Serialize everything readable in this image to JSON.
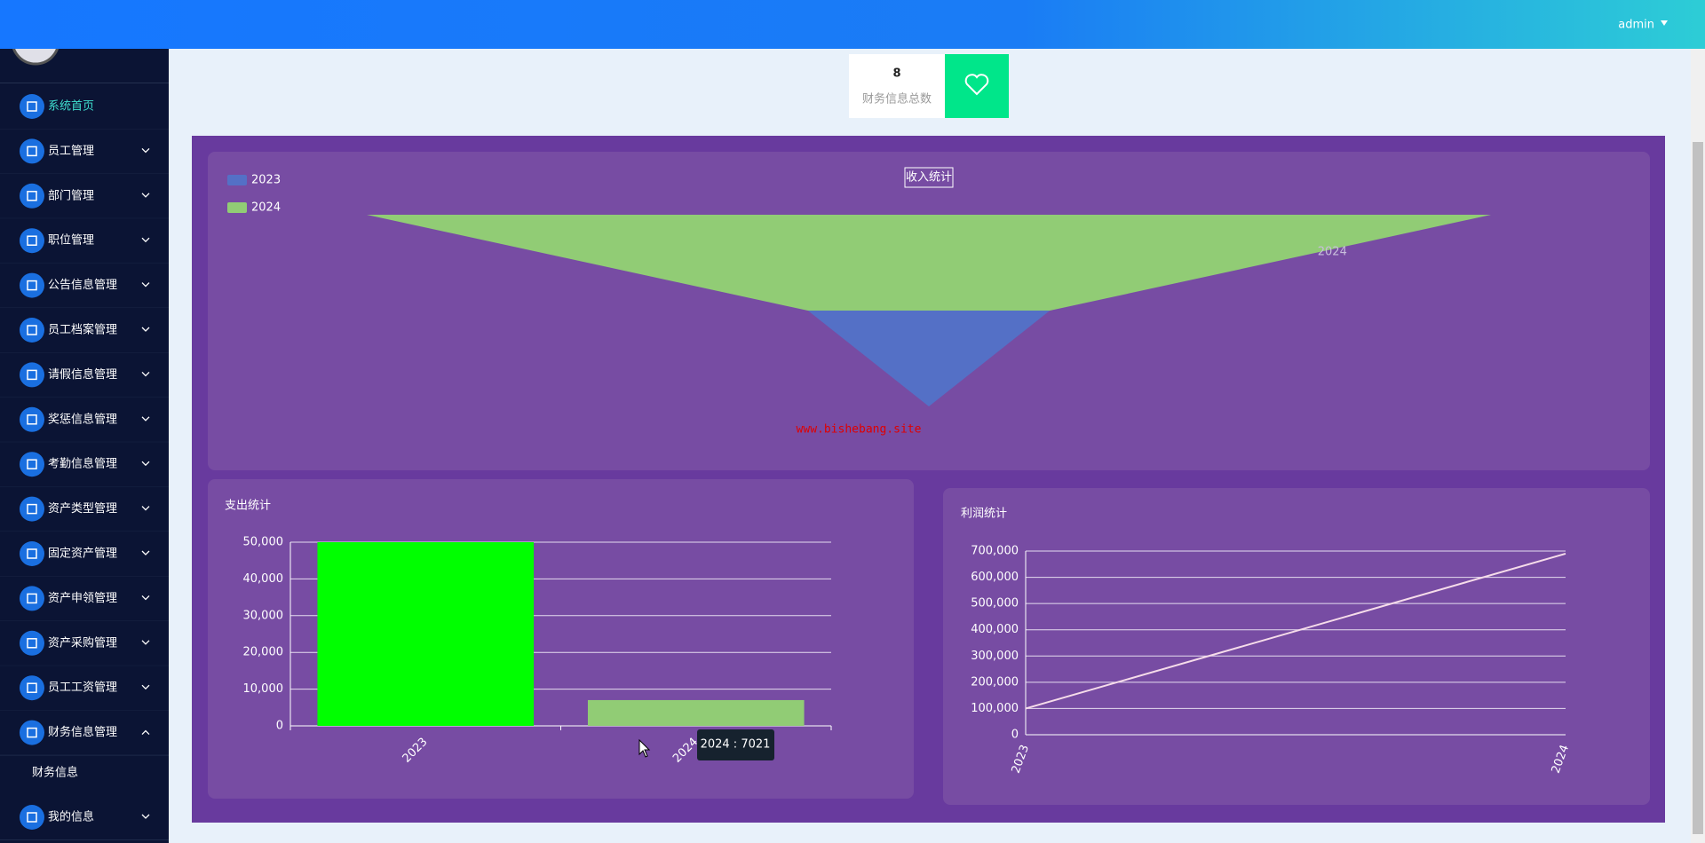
{
  "header": {
    "user": "admin"
  },
  "sidebar": {
    "items": [
      "系统首页",
      "员工管理",
      "部门管理",
      "职位管理",
      "公告信息管理",
      "员工档案管理",
      "请假信息管理",
      "奖惩信息管理",
      "考勤信息管理",
      "资产类型管理",
      "固定资产管理",
      "资产申领管理",
      "资产采购管理",
      "员工工资管理",
      "财务信息管理"
    ],
    "sub_item": "财务信息",
    "last_item": "我的信息"
  },
  "stat": {
    "value": 8,
    "label": "财务信息总数"
  },
  "watermark": "www.bishebang.site",
  "tooltip": "2024 : 7021",
  "chart_data": [
    {
      "type": "funnel",
      "title": "收入统计",
      "categories": [
        "2023",
        "2024"
      ],
      "values": [
        150000,
        697021
      ],
      "colors": [
        "#5470c6",
        "#91cc75"
      ],
      "legend": "top-left"
    },
    {
      "type": "bar",
      "title": "支出统计",
      "categories": [
        "2023",
        "2024"
      ],
      "values": [
        50000,
        7021
      ],
      "colors": [
        "#00ff00",
        "#91cc75"
      ],
      "ylim": [
        0,
        50000
      ],
      "yticks": [
        0,
        {
          "value": 10000,
          "label": "10,000"
        },
        {
          "value": 20000,
          "label": "20,000"
        },
        {
          "value": 30000,
          "label": "30,000"
        },
        {
          "value": 40000,
          "label": "40,000"
        },
        {
          "value": 50000,
          "label": "50,000"
        }
      ],
      "grid": true
    },
    {
      "type": "line",
      "title": "利润统计",
      "categories": [
        "2023",
        "2024"
      ],
      "values": [
        100000,
        690000
      ],
      "color": "#f6dcea",
      "ylim": [
        0,
        700000
      ],
      "yticks": [
        0,
        {
          "value": 100000,
          "label": "100,000"
        },
        {
          "value": 200000,
          "label": "200,000"
        },
        {
          "value": 300000,
          "label": "300,000"
        },
        {
          "value": 400000,
          "label": "400,000"
        },
        {
          "value": 500000,
          "label": "500,000"
        },
        {
          "value": 600000,
          "label": "600,000"
        },
        {
          "value": 700000,
          "label": "700,000"
        }
      ],
      "grid": true
    }
  ]
}
